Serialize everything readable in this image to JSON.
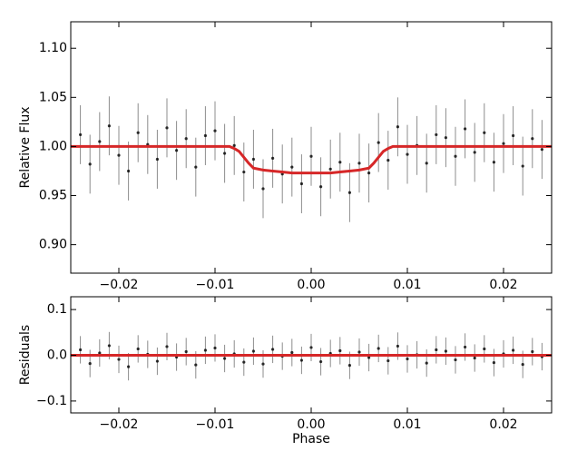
{
  "chart_data": [
    {
      "type": "errorbar",
      "ylabel": "Relative Flux",
      "x": [
        -0.024,
        -0.023,
        -0.022,
        -0.021,
        -0.02,
        -0.019,
        -0.018,
        -0.017,
        -0.016,
        -0.015,
        -0.014,
        -0.013,
        -0.012,
        -0.011,
        -0.01,
        -0.009,
        -0.008,
        -0.007,
        -0.006,
        -0.005,
        -0.004,
        -0.003,
        -0.002,
        -0.001,
        0,
        0.001,
        0.002,
        0.003,
        0.004,
        0.005,
        0.006,
        0.007,
        0.008,
        0.009,
        0.01,
        0.011,
        0.012,
        0.013,
        0.014,
        0.015,
        0.016,
        0.017,
        0.018,
        0.019,
        0.02,
        0.021,
        0.022,
        0.023,
        0.024
      ],
      "values": [
        1.012,
        0.982,
        1.005,
        1.021,
        0.991,
        0.975,
        1.014,
        1.002,
        0.987,
        1.019,
        0.996,
        1.008,
        0.979,
        1.011,
        1.016,
        0.993,
        1.001,
        0.974,
        0.987,
        0.957,
        0.988,
        0.972,
        0.979,
        0.962,
        0.99,
        0.959,
        0.977,
        0.984,
        0.953,
        0.983,
        0.973,
        1.004,
        0.986,
        1.02,
        0.992,
        1.001,
        0.983,
        1.012,
        1.009,
        0.99,
        1.018,
        0.994,
        1.014,
        0.984,
        1.003,
        1.011,
        0.98,
        1.008,
        0.997
      ],
      "error": 0.03,
      "color": "#000000",
      "model": {
        "x": [
          -0.025,
          -0.0085,
          -0.008,
          -0.0075,
          -0.007,
          -0.0065,
          -0.006,
          -0.005,
          -0.004,
          -0.003,
          -0.002,
          0,
          0.002,
          0.003,
          0.004,
          0.005,
          0.006,
          0.0065,
          0.007,
          0.0075,
          0.008,
          0.0085,
          0.025
        ],
        "values": [
          1,
          1,
          0.998,
          0.995,
          0.989,
          0.983,
          0.978,
          0.976,
          0.975,
          0.974,
          0.973,
          0.973,
          0.973,
          0.974,
          0.975,
          0.976,
          0.978,
          0.983,
          0.989,
          0.995,
          0.998,
          1,
          1
        ],
        "color": "#d62728"
      },
      "xlim": [
        -0.025,
        0.025
      ],
      "ylim": [
        0.871,
        1.127
      ],
      "xticks": [
        {
          "value": -0.02,
          "label": "−0.02"
        },
        {
          "value": -0.01,
          "label": "−0.01"
        },
        {
          "value": 0,
          "label": "0.00"
        },
        0.01,
        0.02
      ],
      "yticks": [
        {
          "value": 0.9,
          "label": "0.90"
        },
        0.95,
        {
          "value": 1,
          "label": "1.00"
        },
        1.05,
        {
          "value": 1.1,
          "label": "1.10"
        }
      ]
    },
    {
      "type": "errorbar",
      "ylabel": "Residuals",
      "xlabel": "Phase",
      "x": [
        -0.024,
        -0.023,
        -0.022,
        -0.021,
        -0.02,
        -0.019,
        -0.018,
        -0.017,
        -0.016,
        -0.015,
        -0.014,
        -0.013,
        -0.012,
        -0.011,
        -0.01,
        -0.009,
        -0.008,
        -0.007,
        -0.006,
        -0.005,
        -0.004,
        -0.003,
        -0.002,
        -0.001,
        0,
        0.001,
        0.002,
        0.003,
        0.004,
        0.005,
        0.006,
        0.007,
        0.008,
        0.009,
        0.01,
        0.011,
        0.012,
        0.013,
        0.014,
        0.015,
        0.016,
        0.017,
        0.018,
        0.019,
        0.02,
        0.021,
        0.022,
        0.023,
        0.024
      ],
      "values": [
        0.012,
        -0.018,
        0.005,
        0.021,
        -0.009,
        -0.025,
        0.014,
        0.002,
        -0.013,
        0.019,
        -0.004,
        0.008,
        -0.021,
        0.011,
        0.016,
        -0.007,
        0.003,
        -0.015,
        0.009,
        -0.019,
        0.013,
        -0.002,
        0.006,
        -0.011,
        0.017,
        -0.014,
        0.004,
        0.01,
        -0.022,
        0.007,
        -0.005,
        0.015,
        -0.012,
        0.02,
        -0.008,
        0.001,
        -0.017,
        0.012,
        0.009,
        -0.01,
        0.018,
        -0.006,
        0.014,
        -0.016,
        0.003,
        0.011,
        -0.02,
        0.008,
        -0.003
      ],
      "error": 0.03,
      "color": "#000000",
      "model": {
        "x": [
          -0.025,
          0.025
        ],
        "values": [
          0,
          0
        ],
        "color": "#d62728"
      },
      "xlim": [
        -0.025,
        0.025
      ],
      "ylim": [
        -0.126,
        0.128
      ],
      "xticks": [
        {
          "value": -0.02,
          "label": "−0.02"
        },
        {
          "value": -0.01,
          "label": "−0.01"
        },
        {
          "value": 0,
          "label": "0.00"
        },
        0.01,
        0.02
      ],
      "yticks": [
        {
          "value": -0.1,
          "label": "−0.1"
        },
        {
          "value": 0,
          "label": "0.0"
        },
        0.1
      ]
    }
  ]
}
